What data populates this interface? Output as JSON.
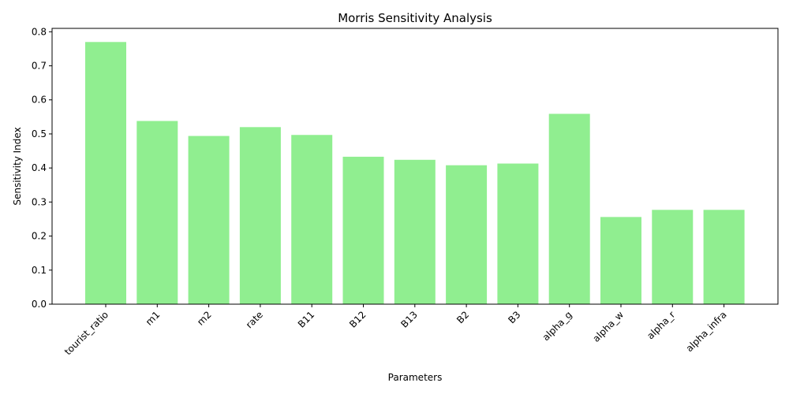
{
  "chart_data": {
    "type": "bar",
    "title": "Morris Sensitivity Analysis",
    "xlabel": "Parameters",
    "ylabel": "Sensitivity Index",
    "categories": [
      "tourist_ratio",
      "m1",
      "m2",
      "rate",
      "B11",
      "B12",
      "B13",
      "B2",
      "B3",
      "alpha_g",
      "alpha_w",
      "alpha_r",
      "alpha_infra"
    ],
    "values": [
      0.77,
      0.538,
      0.494,
      0.52,
      0.497,
      0.433,
      0.424,
      0.408,
      0.413,
      0.559,
      0.256,
      0.277,
      0.277
    ],
    "ylim": [
      0,
      0.81
    ],
    "yticks": [
      "0.0",
      "0.1",
      "0.2",
      "0.3",
      "0.4",
      "0.5",
      "0.6",
      "0.7",
      "0.8"
    ],
    "bar_color": "#90ee90",
    "grid": false,
    "legend": "none"
  }
}
